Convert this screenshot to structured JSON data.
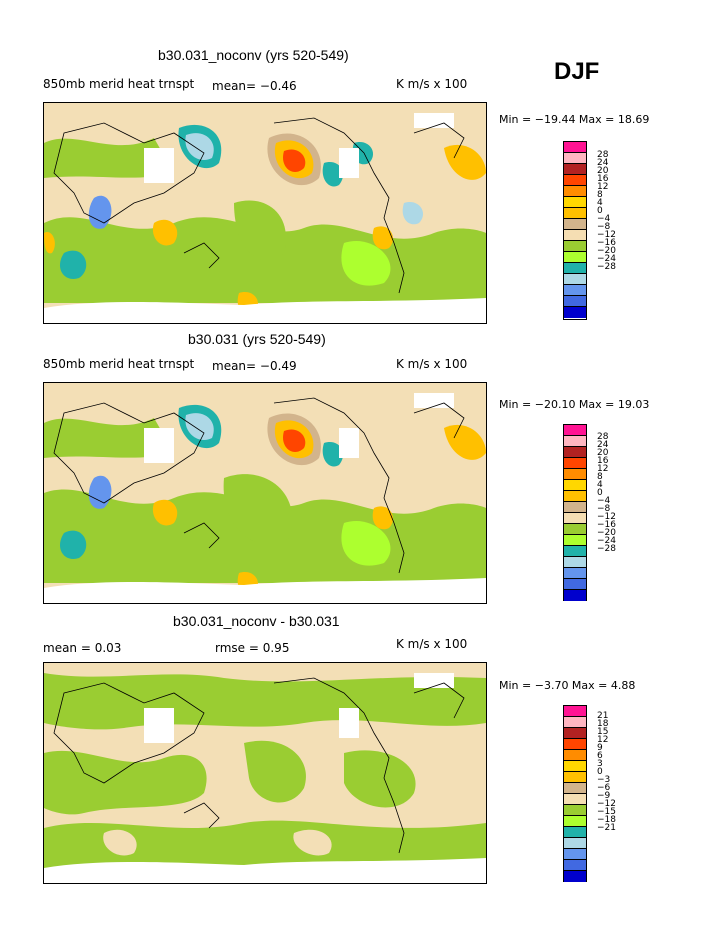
{
  "season": "DJF",
  "panels": [
    {
      "title": "b30.031_noconv (yrs 520-549)",
      "left": "850mb merid heat trnspt",
      "mid": "mean=  −0.46",
      "right": "K m/s x 100",
      "minmax": "Min = −19.44 Max =  18.69",
      "levels": [
        "28",
        "24",
        "20",
        "16",
        "12",
        "8",
        "4",
        "0",
        "−4",
        "−8",
        "−12",
        "−16",
        "−20",
        "−24",
        "−28"
      ]
    },
    {
      "title": "b30.031 (yrs 520-549)",
      "left": "850mb merid heat trnspt",
      "mid": "mean=  −0.49",
      "right": "K m/s x 100",
      "minmax": "Min = −20.10 Max =  19.03",
      "levels": [
        "28",
        "24",
        "20",
        "16",
        "12",
        "8",
        "4",
        "0",
        "−4",
        "−8",
        "−12",
        "−16",
        "−20",
        "−24",
        "−28"
      ]
    },
    {
      "title": "b30.031_noconv - b30.031",
      "left": "mean =    0.03",
      "mid": "rmse =    0.95",
      "right": "K m/s x 100",
      "minmax": "Min =  −3.70 Max =   4.88",
      "levels": [
        "21",
        "18",
        "15",
        "12",
        "9",
        "6",
        "3",
        "0",
        "−3",
        "−6",
        "−9",
        "−12",
        "−15",
        "−18",
        "−21"
      ]
    }
  ],
  "colorbar_colors": [
    "#ff1493",
    "#ffb6c1",
    "#b22222",
    "#ff4500",
    "#ff8c00",
    "#ffd700",
    "#ffc000",
    "#d2b48c",
    "#f5deb3",
    "#9acd32",
    "#adff2f",
    "#20b2aa",
    "#add8e6",
    "#6495ed",
    "#4169e1",
    "#0000cd",
    "#9370db"
  ]
}
